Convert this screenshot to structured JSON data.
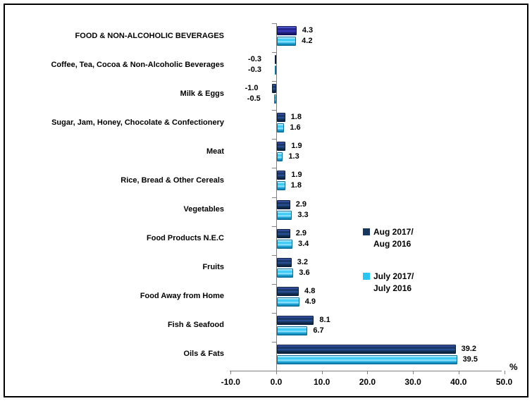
{
  "chart_data": {
    "type": "bar",
    "orientation": "horizontal",
    "title": "",
    "xlabel": "%",
    "ylabel": "",
    "xlim": [
      -10,
      50
    ],
    "grid": false,
    "legend_position": "middle-right",
    "x_ticks": [
      {
        "label": "-10.0",
        "value": -10
      },
      {
        "label": "0.0",
        "value": 0
      },
      {
        "label": "10.0",
        "value": 10
      },
      {
        "label": "20.0",
        "value": 20
      },
      {
        "label": "30.0",
        "value": 30
      },
      {
        "label": "40.0",
        "value": 40
      },
      {
        "label": "50.0",
        "value": 50
      }
    ],
    "categories": [
      "FOOD & NON-ALCOHOLIC BEVERAGES",
      "Coffee, Tea, Cocoa & Non-Alcoholic Beverages",
      "Milk & Eggs",
      "Sugar, Jam, Honey, Chocolate & Confectionery",
      "Meat",
      "Rice, Bread & Other Cereals",
      "Vegetables",
      "Food Products N.E.C",
      "Fruits",
      "Food Away from Home",
      "Fish & Seafood",
      "Oils & Fats"
    ],
    "series": [
      {
        "name": "Aug 2017/ Aug 2016",
        "legend_lines": [
          "Aug 2017/",
          "Aug 2016"
        ],
        "color": "#17375E",
        "aggregate_bar_color": "#3333B2",
        "values": [
          4.3,
          -0.3,
          -1.0,
          1.8,
          1.9,
          1.9,
          2.9,
          2.9,
          3.2,
          4.8,
          8.1,
          39.2
        ]
      },
      {
        "name": "July 2017/ July 2016",
        "legend_lines": [
          "July 2017/",
          "July 2016"
        ],
        "color": "#29C5F5",
        "values": [
          4.2,
          -0.3,
          -0.5,
          1.6,
          1.3,
          1.8,
          3.3,
          3.4,
          3.6,
          4.9,
          6.7,
          39.5
        ]
      }
    ],
    "value_label_decimals": 1
  },
  "colors": {
    "axis": "#808080",
    "text": "#000000",
    "frame_border": "#000000",
    "background": "#FFFFFF"
  }
}
